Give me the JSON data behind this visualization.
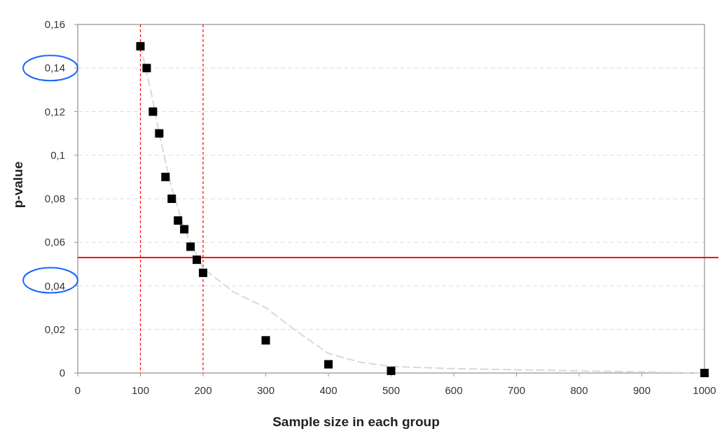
{
  "chart_data": {
    "type": "scatter",
    "xlabel": "Sample size in each group",
    "ylabel": "p-value",
    "marker": "square",
    "grid": "y",
    "xlim": [
      0,
      1000
    ],
    "xticks": [
      0,
      100,
      200,
      300,
      400,
      500,
      600,
      700,
      800,
      900,
      1000
    ],
    "ylim": [
      0,
      0.16
    ],
    "yticks": [
      {
        "value": 0,
        "label": "0"
      },
      {
        "value": 0.02,
        "label": "0,02"
      },
      {
        "value": 0.04,
        "label": "0,04"
      },
      {
        "value": 0.06,
        "label": "0,06"
      },
      {
        "value": 0.08,
        "label": "0,08"
      },
      {
        "value": 0.1,
        "label": "0,1"
      },
      {
        "value": 0.12,
        "label": "0,12"
      },
      {
        "value": 0.14,
        "label": "0,14"
      },
      {
        "value": 0.16,
        "label": "0,16"
      }
    ],
    "series": [
      {
        "type": "line",
        "color": "#d9d9d9",
        "line_style": "dashed",
        "marker": "none",
        "x": [
          100,
          110,
          120,
          130,
          140,
          150,
          170,
          200,
          250,
          300,
          350,
          400,
          450,
          500,
          600,
          800,
          1000
        ],
        "values": [
          0.15,
          0.138,
          0.125,
          0.11,
          0.097,
          0.085,
          0.066,
          0.048,
          0.037,
          0.03,
          0.019,
          0.009,
          0.005,
          0.003,
          0.002,
          0.001,
          0
        ]
      },
      {
        "color": "#000000",
        "x": [
          100,
          110,
          120,
          130,
          140,
          150,
          160,
          170,
          180,
          190,
          200,
          300,
          400,
          500,
          1000
        ],
        "values": [
          0.15,
          0.14,
          0.12,
          0.11,
          0.09,
          0.08,
          0.07,
          0.066,
          0.058,
          0.052,
          0.046,
          0.015,
          0.004,
          0.001,
          0
        ]
      }
    ],
    "ref_lines": [
      {
        "axis": "y",
        "value": 0.053,
        "color": "#ff0000",
        "line_style": "solid"
      },
      {
        "axis": "x",
        "value": 100,
        "color": "#ff0000",
        "line_style": "dashed"
      },
      {
        "axis": "x",
        "value": 200,
        "color": "#ff0000",
        "line_style": "dashed"
      }
    ]
  }
}
